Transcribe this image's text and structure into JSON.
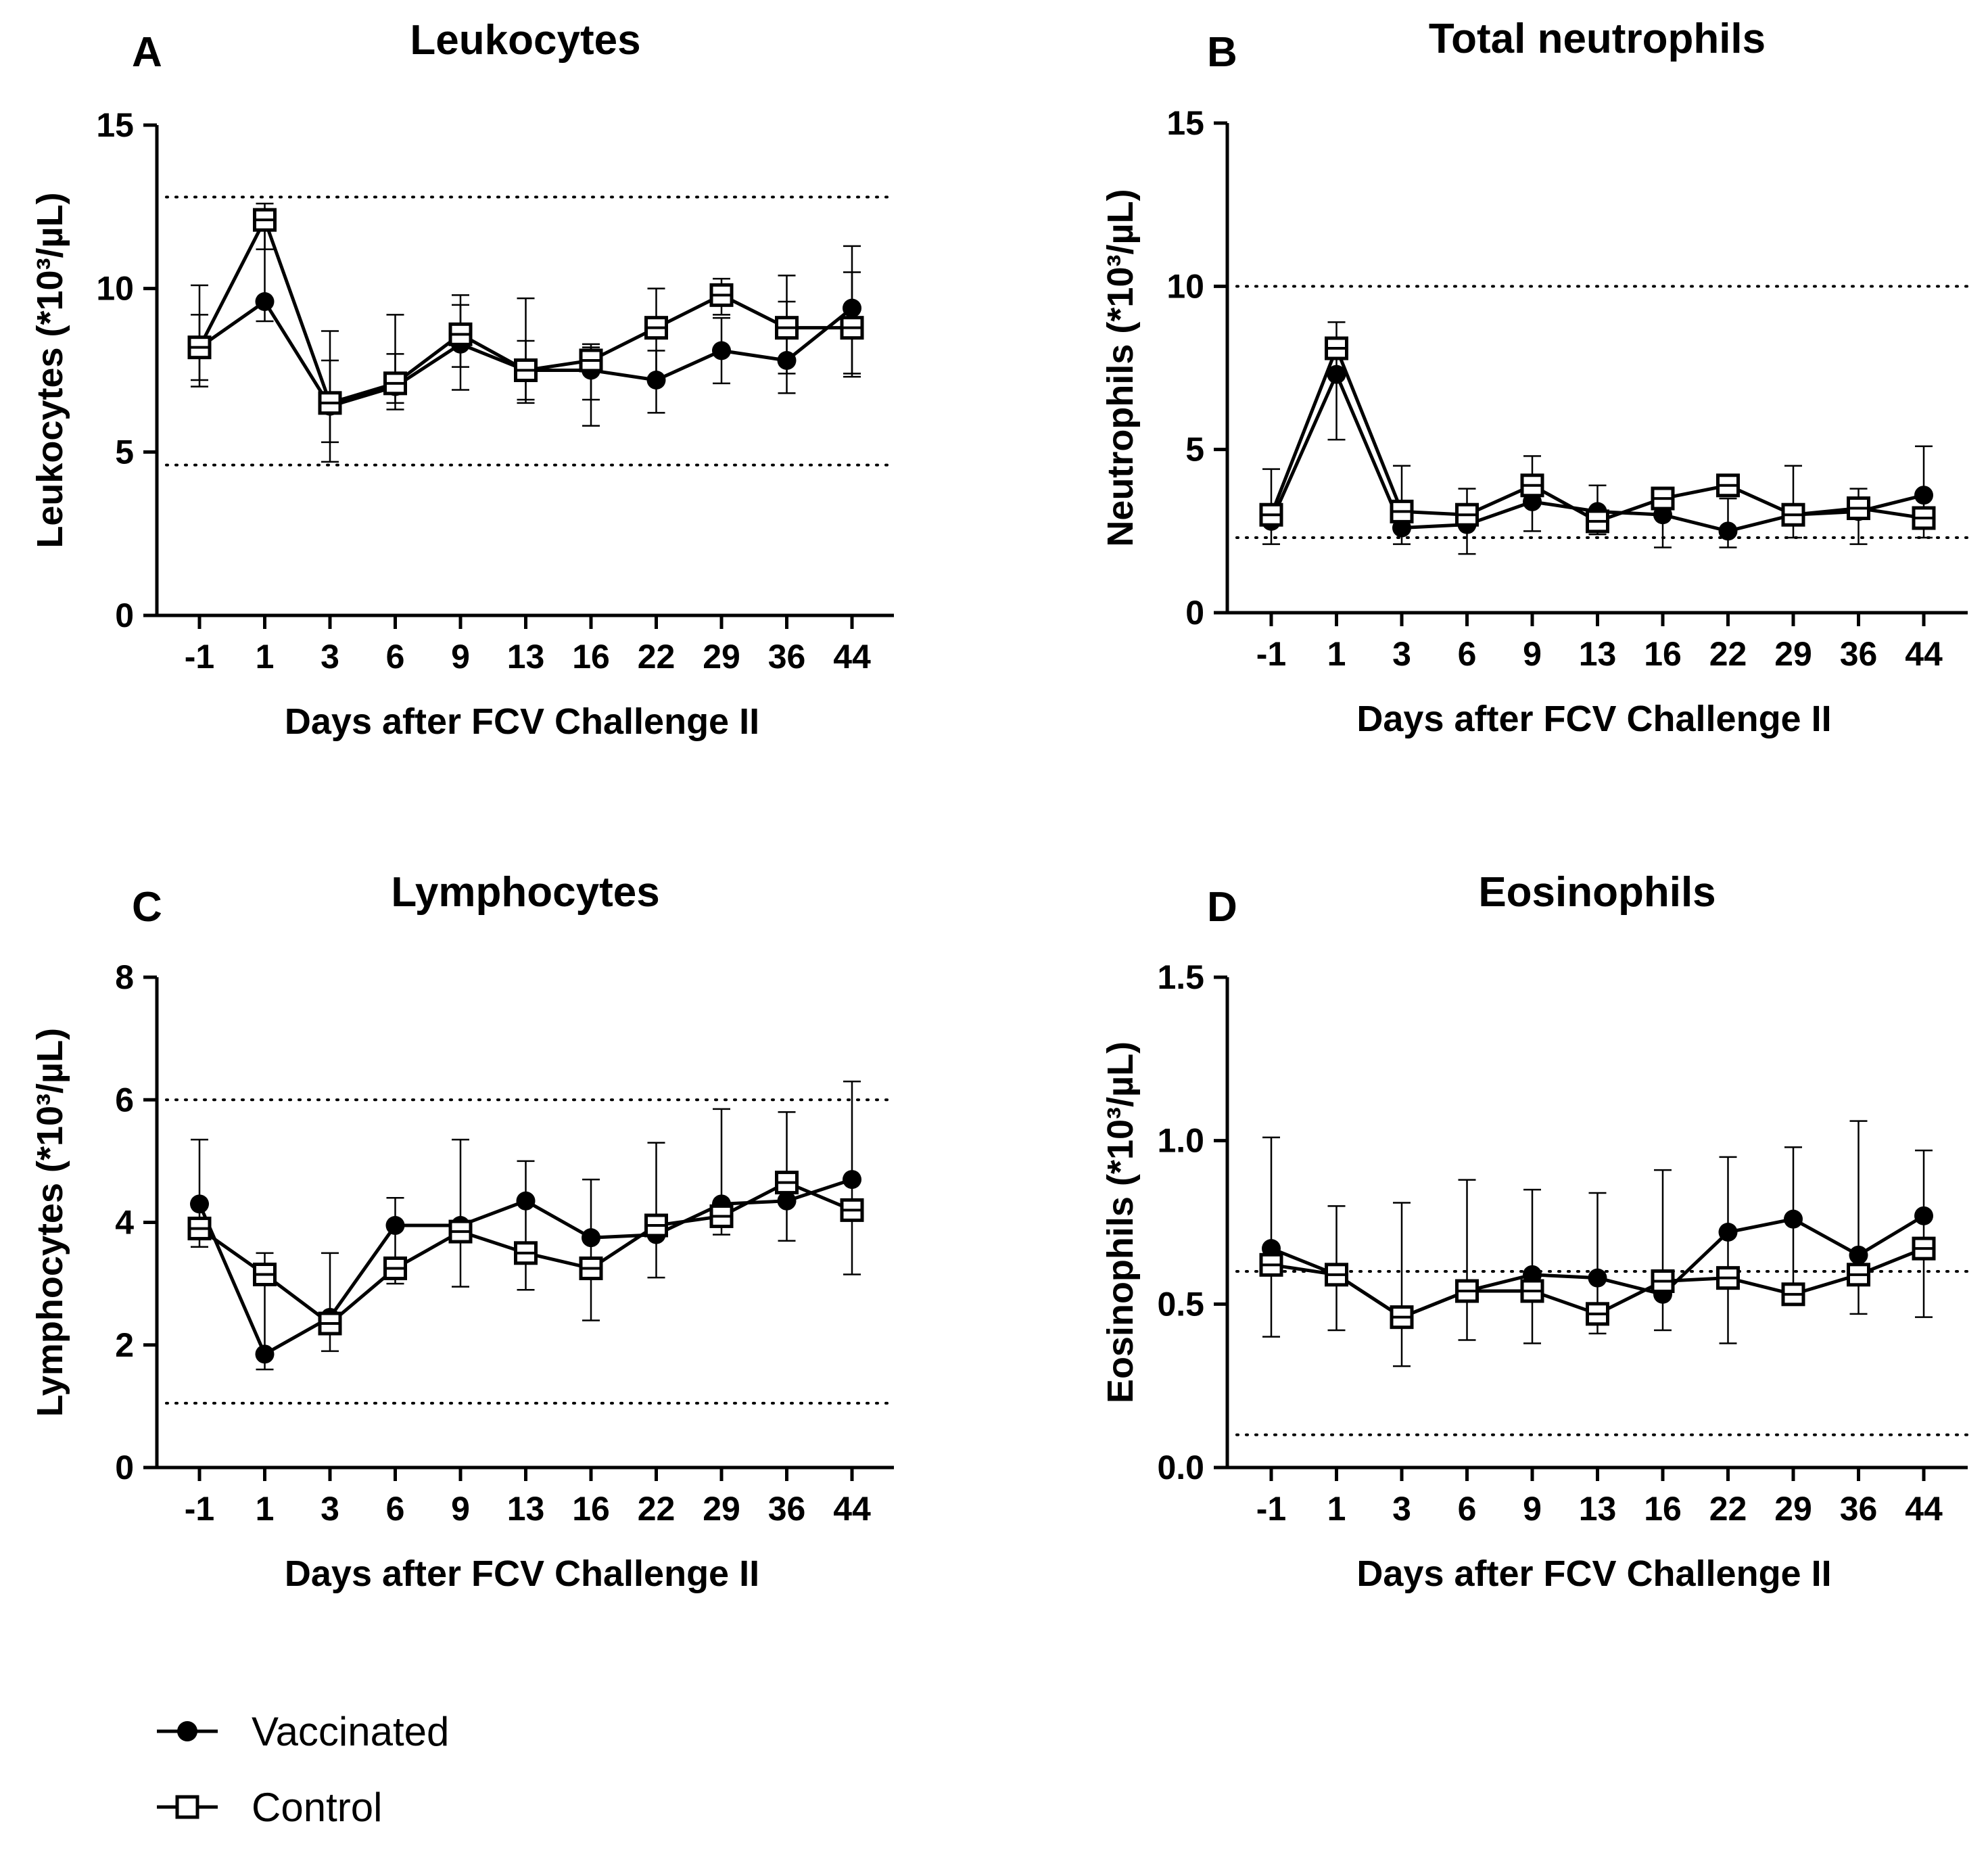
{
  "legend": {
    "vaccinated": "Vaccinated",
    "control": "Control"
  },
  "chart_data": [
    {
      "panel": "A",
      "type": "line",
      "title": "Leukocytes",
      "xlabel": "Days after FCV Challenge II",
      "ylabel": "Leukocytes (*10³/µL)",
      "categories": [
        "-1",
        "1",
        "3",
        "6",
        "9",
        "13",
        "16",
        "22",
        "29",
        "36",
        "44"
      ],
      "ylim": [
        0,
        15
      ],
      "yticks": [
        "0",
        "5",
        "10",
        "15"
      ],
      "ytick_values": [
        0,
        5,
        10,
        15
      ],
      "reference_lines": [
        12.8,
        4.6
      ],
      "series": [
        {
          "name": "Vaccinated",
          "marker": "filled-circle",
          "values": [
            8.2,
            9.6,
            6.4,
            7.0,
            8.3,
            7.5,
            7.5,
            7.2,
            8.1,
            7.8,
            9.4
          ],
          "err_low": [
            7.0,
            9.0,
            5.3,
            6.5,
            6.9,
            6.5,
            5.8,
            6.2,
            7.1,
            6.8,
            7.4
          ],
          "err_high": [
            10.1,
            12.4,
            8.7,
            8.0,
            9.8,
            8.4,
            8.2,
            8.1,
            9.1,
            9.6,
            11.3
          ]
        },
        {
          "name": "Control",
          "marker": "open-square",
          "values": [
            8.2,
            12.1,
            6.5,
            7.1,
            8.6,
            7.5,
            7.8,
            8.8,
            9.8,
            8.8,
            8.8
          ],
          "err_low": [
            7.2,
            11.2,
            4.7,
            6.3,
            7.6,
            6.6,
            6.6,
            7.3,
            9.2,
            7.4,
            7.3
          ],
          "err_high": [
            9.2,
            12.6,
            7.8,
            9.2,
            9.5,
            9.7,
            8.3,
            10.0,
            10.3,
            10.4,
            10.5
          ]
        }
      ]
    },
    {
      "panel": "B",
      "type": "line",
      "title": "Total neutrophils",
      "xlabel": "Days after FCV Challenge II",
      "ylabel": "Neutrophils (*10³/µL)",
      "categories": [
        "-1",
        "1",
        "3",
        "6",
        "9",
        "13",
        "16",
        "22",
        "29",
        "36",
        "44"
      ],
      "ylim": [
        0,
        15
      ],
      "yticks": [
        "0",
        "5",
        "10",
        "15"
      ],
      "ytick_values": [
        0,
        5,
        10,
        15
      ],
      "reference_lines": [
        10.0,
        2.3
      ],
      "series": [
        {
          "name": "Vaccinated",
          "marker": "filled-circle",
          "values": [
            2.8,
            7.3,
            2.6,
            2.7,
            3.4,
            3.1,
            3.0,
            2.5,
            3.0,
            3.1,
            3.6
          ],
          "err_low": [
            2.1,
            5.3,
            2.1,
            1.8,
            2.5,
            2.4,
            2.0,
            2.0,
            2.3,
            2.1,
            2.3
          ],
          "err_high": [
            4.4,
            8.9,
            4.5,
            3.8,
            4.8,
            3.9,
            3.5,
            3.5,
            4.5,
            3.8,
            5.1
          ]
        },
        {
          "name": "Control",
          "marker": "open-square",
          "values": [
            3.0,
            8.1,
            3.1,
            3.0,
            3.9,
            2.8,
            3.5,
            3.9,
            3.0,
            3.2,
            2.9
          ]
        }
      ]
    },
    {
      "panel": "C",
      "type": "line",
      "title": "Lymphocytes",
      "xlabel": "Days after FCV Challenge II",
      "ylabel": "Lymphocytes (*10³/µL)",
      "categories": [
        "-1",
        "1",
        "3",
        "6",
        "9",
        "13",
        "16",
        "22",
        "29",
        "36",
        "44"
      ],
      "ylim": [
        0,
        8
      ],
      "yticks": [
        "0",
        "2",
        "4",
        "6",
        "8"
      ],
      "ytick_values": [
        0,
        2,
        4,
        6,
        8
      ],
      "reference_lines": [
        6.0,
        1.05
      ],
      "series": [
        {
          "name": "Vaccinated",
          "marker": "filled-circle",
          "values": [
            4.3,
            1.85,
            2.45,
            3.95,
            3.95,
            4.35,
            3.75,
            3.8,
            4.3,
            4.35,
            4.7
          ],
          "err_low": [
            3.6,
            1.6,
            1.9,
            3.0,
            2.95,
            2.9,
            2.4,
            3.1,
            3.8,
            3.7,
            3.15
          ],
          "err_high": [
            5.35,
            3.5,
            3.5,
            4.4,
            5.35,
            5.0,
            4.7,
            5.3,
            5.85,
            5.8,
            6.3
          ]
        },
        {
          "name": "Control",
          "marker": "open-square",
          "values": [
            3.9,
            3.15,
            2.35,
            3.25,
            3.85,
            3.5,
            3.25,
            3.95,
            4.1,
            4.65,
            4.2
          ]
        }
      ]
    },
    {
      "panel": "D",
      "type": "line",
      "title": "Eosinophils",
      "xlabel": "Days after FCV Challenge II",
      "ylabel": "Eosinophils (*10³/µL)",
      "categories": [
        "-1",
        "1",
        "3",
        "6",
        "9",
        "13",
        "16",
        "22",
        "29",
        "36",
        "44"
      ],
      "ylim": [
        0,
        1.5
      ],
      "yticks": [
        "0.0",
        "0.5",
        "1.0",
        "1.5"
      ],
      "ytick_values": [
        0,
        0.5,
        1.0,
        1.5
      ],
      "reference_lines": [
        0.6,
        0.1
      ],
      "series": [
        {
          "name": "Vaccinated",
          "marker": "filled-circle",
          "values": [
            0.67,
            0.59,
            0.46,
            0.54,
            0.59,
            0.58,
            0.53,
            0.72,
            0.76,
            0.65,
            0.77
          ],
          "err_low": [
            0.4,
            0.42,
            0.31,
            0.39,
            0.38,
            0.41,
            0.42,
            0.38,
            0.5,
            0.47,
            0.46
          ],
          "err_high": [
            1.01,
            0.8,
            0.81,
            0.88,
            0.85,
            0.84,
            0.91,
            0.95,
            0.98,
            1.06,
            0.97
          ]
        },
        {
          "name": "Control",
          "marker": "open-square",
          "values": [
            0.62,
            0.59,
            0.46,
            0.54,
            0.54,
            0.47,
            0.57,
            0.58,
            0.53,
            0.59,
            0.67
          ]
        }
      ]
    }
  ]
}
